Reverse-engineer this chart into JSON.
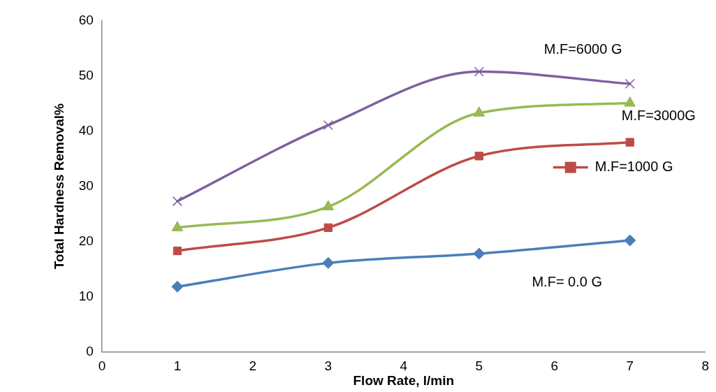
{
  "chart_data": {
    "type": "line",
    "xlabel": "Flow Rate, l/min",
    "ylabel": "Total Hardness Removal%",
    "x": [
      1,
      3,
      5,
      7
    ],
    "xlim": [
      0,
      8
    ],
    "xticks": [
      0,
      1,
      2,
      3,
      4,
      5,
      6,
      7,
      8
    ],
    "ylim": [
      0,
      60
    ],
    "yticks": [
      0,
      10,
      20,
      30,
      40,
      50,
      60
    ],
    "grid": false,
    "legend": "right",
    "series": [
      {
        "name": "M.F= 0.0 G",
        "color": "#4a7ebb",
        "marker": "diamond",
        "values": [
          11.8,
          16.1,
          17.8,
          20.2
        ]
      },
      {
        "name": "M.F=1000 G",
        "color": "#be4b48",
        "marker": "square",
        "values": [
          18.3,
          22.5,
          35.5,
          38.0
        ]
      },
      {
        "name": "M.F=3000G",
        "color": "#98b954",
        "marker": "triangle",
        "values": [
          22.5,
          26.3,
          43.3,
          45.1
        ]
      },
      {
        "name": "M.F=6000 G",
        "color": "#7d60a0",
        "marker": "cross",
        "values": [
          27.3,
          41.1,
          50.8,
          48.6
        ]
      }
    ]
  }
}
